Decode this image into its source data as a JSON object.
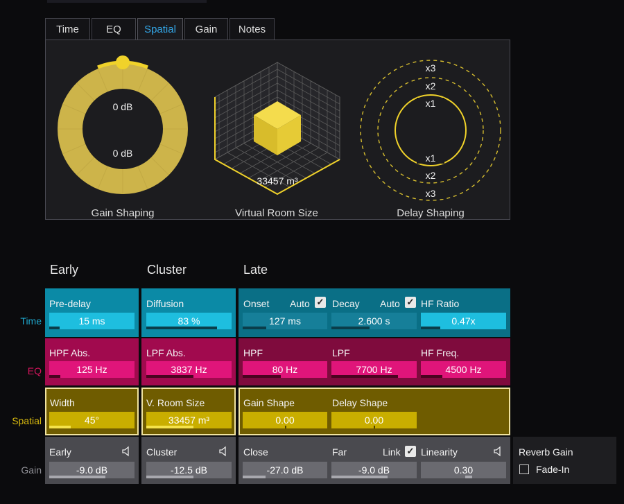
{
  "tabs": [
    {
      "label": "Time"
    },
    {
      "label": "EQ"
    },
    {
      "label": "Spatial",
      "active": true
    },
    {
      "label": "Gain"
    },
    {
      "label": "Notes"
    }
  ],
  "visuals": {
    "gain_shaping": {
      "label": "Gain Shaping",
      "top_value": "0 dB",
      "bottom_value": "0 dB"
    },
    "room_size": {
      "label": "Virtual Room Size",
      "value": "33457 m³"
    },
    "delay_shaping": {
      "label": "Delay Shaping",
      "marks_top": [
        "x3",
        "x2",
        "x1"
      ],
      "marks_bottom": [
        "x1",
        "x2",
        "x3"
      ]
    }
  },
  "columns": {
    "early": "Early",
    "cluster": "Cluster",
    "late": "Late"
  },
  "rows": {
    "time": "Time",
    "eq": "EQ",
    "spatial": "Spatial",
    "gain": "Gain"
  },
  "time": {
    "predelay": {
      "label": "Pre-delay",
      "value": "15 ms",
      "level": 0.12
    },
    "diffusion": {
      "label": "Diffusion",
      "value": "83 %",
      "level": 0.83
    },
    "onset": {
      "label": "Onset",
      "auto": "Auto",
      "value": "127 ms",
      "level": 0.28
    },
    "decay": {
      "label": "Decay",
      "auto": "Auto",
      "value": "2.600 s",
      "level": 0.45
    },
    "hfratio": {
      "label": "HF Ratio",
      "value": "0.47x",
      "level": 0.23
    }
  },
  "eq": {
    "hpf_abs": {
      "label": "HPF Abs.",
      "value": "125 Hz",
      "level": 0.13
    },
    "lpf_abs": {
      "label": "LPF Abs.",
      "value": "3837 Hz",
      "level": 0.55
    },
    "hpf": {
      "label": "HPF",
      "value": "80 Hz",
      "level": 0.45
    },
    "lpf": {
      "label": "LPF",
      "value": "7700 Hz",
      "level": 0.78
    },
    "hf_freq": {
      "label": "HF Freq.",
      "value": "4500 Hz",
      "level": 0.25
    }
  },
  "spatial": {
    "width": {
      "label": "Width",
      "value": "45°",
      "level": 0.25
    },
    "vroom": {
      "label": "V. Room Size",
      "value": "33457 m³",
      "level": 0.55
    },
    "gain_shape": {
      "label": "Gain Shape",
      "value": "0.00",
      "level": 0.5
    },
    "delay_shape": {
      "label": "Delay Shape",
      "value": "0.00",
      "level": 0.5
    }
  },
  "gain": {
    "early": {
      "label": "Early",
      "value": "-9.0 dB",
      "level": 0.66
    },
    "cluster": {
      "label": "Cluster",
      "value": "-12.5 dB",
      "level": 0.55
    },
    "close": {
      "label": "Close",
      "value": "-27.0 dB",
      "level": 0.27
    },
    "far": {
      "label": "Far",
      "link": "Link",
      "value": "-9.0 dB",
      "level": 0.66
    },
    "linearity": {
      "label": "Linearity",
      "value": "0.30",
      "level": 0.6
    },
    "reverb_gain": {
      "label": "Reverb Gain",
      "fade_in": "Fade-In"
    }
  },
  "colors": {
    "time": "#0b8aa6",
    "time_late": "#0a6f86",
    "eq": "#a10a4e",
    "eq_late": "#7f0b3d",
    "spatial": "#cdb100",
    "spatial_late": "#6f5c00",
    "gain": "#4a4a4f",
    "accent_tab": "#33a7e8",
    "gold": "#e8cf3a"
  }
}
